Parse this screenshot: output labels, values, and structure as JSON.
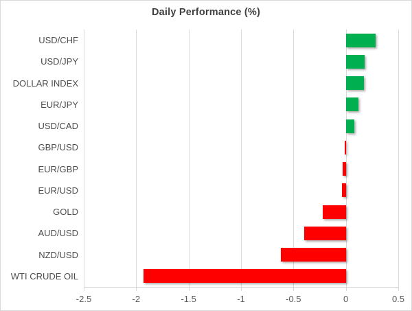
{
  "chart_data": {
    "type": "bar",
    "orientation": "horizontal",
    "title": "Daily Performance (%)",
    "categories": [
      "USD/CHF",
      "USD/JPY",
      "DOLLAR INDEX",
      "EUR/JPY",
      "USD/CAD",
      "GBP/USD",
      "EUR/GBP",
      "EUR/USD",
      "GOLD",
      "AUD/USD",
      "NZD/USD",
      "WTI CRUDE OIL"
    ],
    "values": [
      0.28,
      0.18,
      0.17,
      0.12,
      0.08,
      -0.01,
      -0.03,
      -0.04,
      -0.22,
      -0.4,
      -0.62,
      -1.93
    ],
    "xlabel": "",
    "ylabel": "",
    "xlim": [
      -2.5,
      0.5
    ],
    "xticks": [
      -2.5,
      -2,
      -1.5,
      -1,
      -0.5,
      0,
      0.5
    ],
    "xtick_labels": [
      "-2.5",
      "-2",
      "-1.5",
      "-1",
      "-0.5",
      "0",
      "0.5"
    ],
    "grid": true,
    "legend": false,
    "colors": {
      "positive": "#00B050",
      "negative": "#FF0000",
      "gridline": "#D9D9D9",
      "axis_text": "#595959",
      "category_text": "#4D4D4D",
      "title_text": "#404040",
      "border": "#D9D9D9",
      "background": "#FFFFFF"
    }
  }
}
